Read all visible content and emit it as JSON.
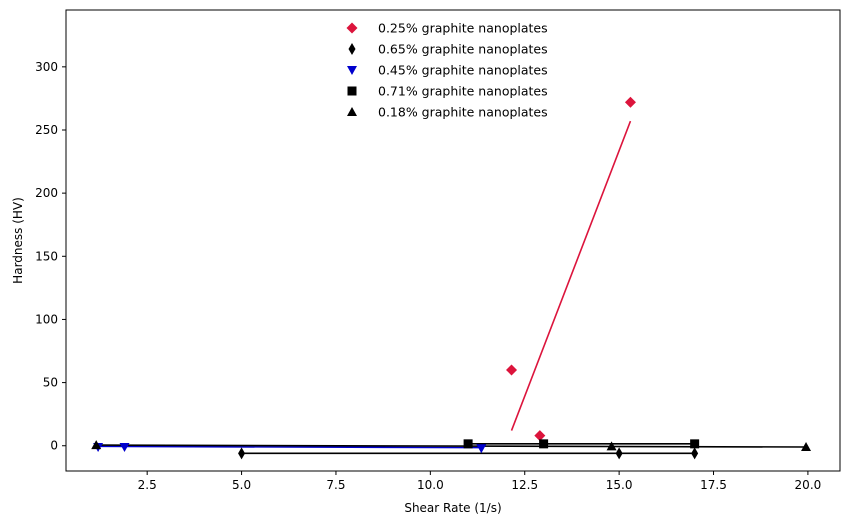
{
  "chart_data": {
    "type": "scatter",
    "xlabel": "Shear Rate (1/s)",
    "ylabel": "Hardness (HV)",
    "xlim": [
      0.35,
      20.85
    ],
    "ylim": [
      -20,
      345
    ],
    "xticks": [
      2.5,
      5.0,
      7.5,
      10.0,
      12.5,
      15.0,
      17.5,
      20.0
    ],
    "xtick_labels": [
      "2.5",
      "5.0",
      "7.5",
      "10.0",
      "12.5",
      "15.0",
      "17.5",
      "20.0"
    ],
    "yticks": [
      0,
      50,
      100,
      150,
      200,
      250,
      300
    ],
    "ytick_labels": [
      "0",
      "50",
      "100",
      "150",
      "200",
      "250",
      "300"
    ],
    "grid": false,
    "legend_position": "top-center",
    "series": [
      {
        "name": "0.25% graphite nanoplates",
        "marker": "diamond",
        "color": "#dc143c",
        "points": [
          [
            12.15,
            60
          ],
          [
            12.9,
            8
          ],
          [
            15.3,
            272
          ]
        ],
        "fit": [
          [
            12.15,
            12
          ],
          [
            15.3,
            257
          ]
        ]
      },
      {
        "name": "0.65% graphite nanoplates",
        "marker": "thin_diamond",
        "color": "#000000",
        "points": [
          [
            5.0,
            -6
          ],
          [
            15.0,
            -6
          ],
          [
            17.0,
            -6
          ]
        ],
        "fit": [
          [
            5.0,
            -6
          ],
          [
            17.0,
            -6
          ]
        ]
      },
      {
        "name": "0.45% graphite nanoplates",
        "marker": "triangle_down",
        "color": "#0000cd",
        "points": [
          [
            1.2,
            -1
          ],
          [
            1.9,
            -1
          ],
          [
            11.35,
            -2
          ]
        ],
        "fit": [
          [
            1.2,
            -0.5
          ],
          [
            11.35,
            -1.5
          ]
        ]
      },
      {
        "name": "0.71% graphite nanoplates",
        "marker": "square",
        "color": "#000000",
        "points": [
          [
            11.0,
            1.5
          ],
          [
            13.0,
            1.5
          ],
          [
            17.0,
            1.5
          ]
        ],
        "fit": [
          [
            11.0,
            1.5
          ],
          [
            17.0,
            1.5
          ]
        ]
      },
      {
        "name": "0.18% graphite nanoplates",
        "marker": "triangle_up",
        "color": "#000000",
        "points": [
          [
            1.15,
            0.5
          ],
          [
            14.8,
            -0.5
          ],
          [
            19.95,
            -1
          ]
        ],
        "fit": [
          [
            1.15,
            0.5
          ],
          [
            19.95,
            -1
          ]
        ]
      }
    ]
  }
}
